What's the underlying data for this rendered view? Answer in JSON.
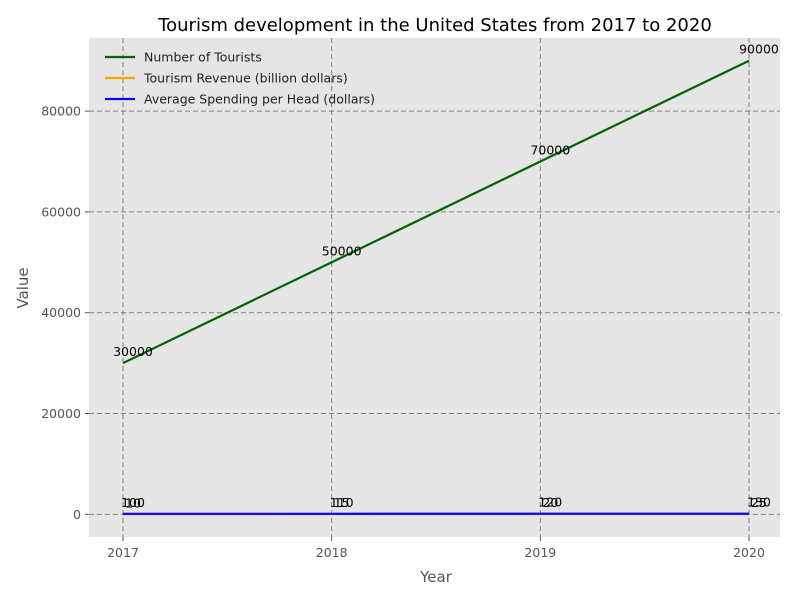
{
  "chart_data": {
    "type": "line",
    "title": "Tourism development in the United States from 2017 to 2020",
    "xlabel": "Year",
    "ylabel": "Value",
    "x": [
      "2017",
      "2018",
      "2019",
      "2020"
    ],
    "series": [
      {
        "name": "Number of Tourists",
        "values": [
          30000,
          50000,
          70000,
          90000
        ],
        "color": "#006400"
      },
      {
        "name": "Tourism Revenue (billion dollars)",
        "values": [
          10,
          15,
          20,
          25
        ],
        "color": "#FFA500"
      },
      {
        "name": "Average Spending per Head (dollars)",
        "values": [
          100,
          110,
          120,
          130
        ],
        "color": "#0000FF"
      }
    ],
    "ylim": [
      -4500,
      94500
    ],
    "yticks": [
      0,
      20000,
      40000,
      60000,
      80000
    ],
    "grid": true,
    "legend_position": "top-left",
    "background_color": "#E5E5E5"
  }
}
